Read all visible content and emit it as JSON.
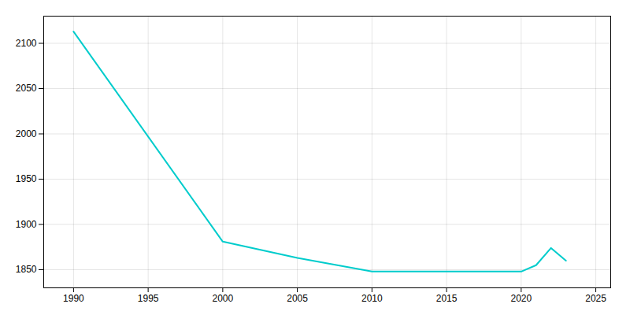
{
  "chart_data": {
    "type": "line",
    "x": [
      1990,
      2000,
      2005,
      2010,
      2015,
      2020,
      2021,
      2022,
      2023
    ],
    "values": [
      2113,
      1881,
      1863,
      1848,
      1848,
      1848,
      1855,
      1874,
      1860
    ],
    "color": "#00CCCC",
    "xlim": [
      1988,
      2026
    ],
    "ylim": [
      1830,
      2130
    ],
    "xticks": [
      1990,
      1995,
      2000,
      2005,
      2010,
      2015,
      2020,
      2025
    ],
    "yticks": [
      1850,
      1900,
      1950,
      2000,
      2050,
      2100
    ],
    "grid": true
  }
}
